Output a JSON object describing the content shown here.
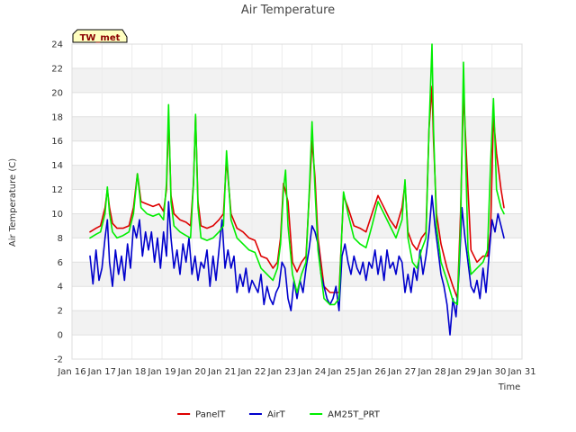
{
  "chart_data": {
    "type": "line",
    "title": "Air Temperature",
    "xlabel": "Time",
    "ylabel": "Air Temperature (C)",
    "badge": "TW_met",
    "xlim": [
      0,
      15
    ],
    "ylim": [
      -2,
      24
    ],
    "x_ticks": [
      0,
      1,
      2,
      3,
      4,
      5,
      6,
      7,
      8,
      9,
      10,
      11,
      12,
      13,
      14,
      15
    ],
    "x_tick_labels": [
      "Jan 16",
      "Jan 17",
      "Jan 18",
      "Jan 19",
      "Jan 20",
      "Jan 21",
      "Jan 22",
      "Jan 23",
      "Jan 24",
      "Jan 25",
      "Jan 26",
      "Jan 27",
      "Jan 28",
      "Jan 29",
      "Jan 30",
      "Jan 31"
    ],
    "y_ticks": [
      -2,
      0,
      2,
      4,
      6,
      8,
      10,
      12,
      14,
      16,
      18,
      20,
      22,
      24
    ],
    "grid": true,
    "legend_position": "bottom",
    "series": [
      {
        "name": "PanelT",
        "color": "#dd0000",
        "x": [
          0.6,
          0.8,
          0.95,
          1.1,
          1.18,
          1.25,
          1.35,
          1.5,
          1.7,
          1.9,
          2.05,
          2.18,
          2.3,
          2.5,
          2.7,
          2.9,
          3.05,
          3.15,
          3.22,
          3.3,
          3.4,
          3.6,
          3.8,
          3.95,
          4.05,
          4.12,
          4.2,
          4.3,
          4.5,
          4.7,
          4.9,
          5.05,
          5.15,
          5.3,
          5.5,
          5.7,
          5.9,
          6.1,
          6.3,
          6.5,
          6.7,
          6.85,
          6.95,
          7.05,
          7.2,
          7.35,
          7.5,
          7.65,
          7.8,
          7.92,
          8.0,
          8.1,
          8.2,
          8.4,
          8.6,
          8.75,
          8.9,
          9.05,
          9.2,
          9.4,
          9.6,
          9.8,
          10.0,
          10.2,
          10.4,
          10.6,
          10.8,
          11.0,
          11.1,
          11.2,
          11.35,
          11.5,
          11.65,
          11.8,
          11.9,
          12.0,
          12.05,
          12.15,
          12.3,
          12.5,
          12.7,
          12.85,
          12.95,
          13.05,
          13.2,
          13.3,
          13.5,
          13.7,
          13.85,
          13.95,
          14.05,
          14.15,
          14.3,
          14.4
        ],
        "y": [
          8.5,
          8.8,
          9.0,
          10.5,
          12.0,
          10.5,
          9.2,
          8.8,
          8.8,
          9.0,
          10.5,
          13.3,
          11.0,
          10.8,
          10.6,
          10.8,
          10.2,
          12.0,
          18.0,
          11.5,
          10.0,
          9.5,
          9.3,
          9.0,
          12.5,
          18.0,
          11.0,
          9.0,
          8.8,
          9.0,
          9.5,
          10.0,
          14.5,
          10.0,
          8.8,
          8.5,
          8.0,
          7.8,
          6.5,
          6.3,
          5.5,
          6.0,
          8.0,
          12.5,
          11.0,
          6.0,
          5.2,
          6.0,
          6.5,
          12.0,
          16.0,
          13.0,
          8.0,
          4.0,
          3.5,
          3.5,
          3.5,
          11.5,
          10.5,
          9.0,
          8.8,
          8.5,
          10.0,
          11.5,
          10.5,
          9.5,
          8.8,
          10.5,
          12.5,
          8.5,
          7.5,
          7.0,
          8.0,
          8.5,
          17.0,
          20.5,
          16.0,
          10.0,
          7.5,
          5.5,
          4.0,
          3.0,
          10.0,
          20.0,
          12.0,
          7.0,
          6.0,
          6.5,
          6.5,
          8.5,
          18.0,
          15.0,
          12.0,
          10.5
        ]
      },
      {
        "name": "AirT",
        "color": "#0000cc",
        "x": [
          0.6,
          0.7,
          0.8,
          0.9,
          1.0,
          1.1,
          1.18,
          1.25,
          1.35,
          1.45,
          1.55,
          1.65,
          1.75,
          1.85,
          1.95,
          2.05,
          2.15,
          2.25,
          2.35,
          2.45,
          2.55,
          2.65,
          2.75,
          2.85,
          2.95,
          3.05,
          3.15,
          3.22,
          3.3,
          3.4,
          3.5,
          3.6,
          3.7,
          3.8,
          3.9,
          4.0,
          4.1,
          4.2,
          4.3,
          4.4,
          4.5,
          4.6,
          4.7,
          4.8,
          4.9,
          5.0,
          5.1,
          5.2,
          5.3,
          5.4,
          5.5,
          5.6,
          5.7,
          5.8,
          5.9,
          6.0,
          6.1,
          6.2,
          6.3,
          6.4,
          6.5,
          6.6,
          6.7,
          6.8,
          6.9,
          7.0,
          7.1,
          7.2,
          7.3,
          7.4,
          7.5,
          7.6,
          7.7,
          7.8,
          7.9,
          8.0,
          8.1,
          8.2,
          8.3,
          8.4,
          8.5,
          8.6,
          8.7,
          8.8,
          8.9,
          9.0,
          9.1,
          9.2,
          9.3,
          9.4,
          9.5,
          9.6,
          9.7,
          9.8,
          9.9,
          10.0,
          10.1,
          10.2,
          10.3,
          10.4,
          10.5,
          10.6,
          10.7,
          10.8,
          10.9,
          11.0,
          11.1,
          11.2,
          11.3,
          11.4,
          11.5,
          11.6,
          11.7,
          11.8,
          11.9,
          12.0,
          12.1,
          12.2,
          12.3,
          12.4,
          12.5,
          12.6,
          12.7,
          12.8,
          12.9,
          13.0,
          13.1,
          13.2,
          13.3,
          13.4,
          13.5,
          13.6,
          13.7,
          13.8,
          13.9,
          14.0,
          14.1,
          14.2,
          14.3,
          14.4
        ],
        "y": [
          6.5,
          4.2,
          7.0,
          4.5,
          5.5,
          8.0,
          9.5,
          6.0,
          4.0,
          7.0,
          5.0,
          6.5,
          4.5,
          7.5,
          5.5,
          9.0,
          8.0,
          9.5,
          6.5,
          8.5,
          7.0,
          8.5,
          6.0,
          8.0,
          5.5,
          8.5,
          6.5,
          11.0,
          8.0,
          5.5,
          7.0,
          5.0,
          7.5,
          6.0,
          8.0,
          5.0,
          6.5,
          4.5,
          6.0,
          5.5,
          7.0,
          4.0,
          6.5,
          4.5,
          7.0,
          9.5,
          5.5,
          7.0,
          5.5,
          6.5,
          3.5,
          5.0,
          4.0,
          5.5,
          3.5,
          4.5,
          4.0,
          3.5,
          5.0,
          2.5,
          4.0,
          3.0,
          2.5,
          3.5,
          4.0,
          6.0,
          5.5,
          3.0,
          2.0,
          4.5,
          3.0,
          4.5,
          3.5,
          5.5,
          7.0,
          9.0,
          8.5,
          7.5,
          5.0,
          4.0,
          3.0,
          2.5,
          3.0,
          4.0,
          2.0,
          6.5,
          7.5,
          6.0,
          5.0,
          6.5,
          5.5,
          5.0,
          6.0,
          4.5,
          6.0,
          5.5,
          7.0,
          5.0,
          6.5,
          4.5,
          7.0,
          5.5,
          6.0,
          5.0,
          6.5,
          6.0,
          3.5,
          5.0,
          3.5,
          5.5,
          4.5,
          7.0,
          5.0,
          6.5,
          8.5,
          11.5,
          9.0,
          7.0,
          5.0,
          4.0,
          2.5,
          0.0,
          3.0,
          1.5,
          5.0,
          10.5,
          8.0,
          6.0,
          4.0,
          3.5,
          4.5,
          3.0,
          5.5,
          3.5,
          6.5,
          9.5,
          8.5,
          10.0,
          9.0,
          8.0
        ]
      },
      {
        "name": "AM25T_PRT",
        "color": "#00ee00",
        "x": [
          0.6,
          0.8,
          0.95,
          1.1,
          1.18,
          1.25,
          1.35,
          1.5,
          1.7,
          1.9,
          2.05,
          2.18,
          2.3,
          2.5,
          2.7,
          2.9,
          3.05,
          3.15,
          3.22,
          3.3,
          3.4,
          3.6,
          3.8,
          3.95,
          4.05,
          4.12,
          4.2,
          4.3,
          4.5,
          4.7,
          4.9,
          5.05,
          5.15,
          5.3,
          5.5,
          5.7,
          5.9,
          6.1,
          6.3,
          6.5,
          6.7,
          6.85,
          6.95,
          7.05,
          7.12,
          7.2,
          7.35,
          7.5,
          7.65,
          7.8,
          7.92,
          8.0,
          8.1,
          8.2,
          8.4,
          8.6,
          8.75,
          8.9,
          9.05,
          9.2,
          9.4,
          9.6,
          9.8,
          10.0,
          10.2,
          10.4,
          10.6,
          10.8,
          11.0,
          11.1,
          11.2,
          11.35,
          11.5,
          11.65,
          11.8,
          11.9,
          12.0,
          12.05,
          12.15,
          12.3,
          12.5,
          12.7,
          12.85,
          12.95,
          13.05,
          13.12,
          13.2,
          13.3,
          13.5,
          13.7,
          13.85,
          13.95,
          14.05,
          14.1,
          14.15,
          14.3,
          14.4
        ],
        "y": [
          8.0,
          8.3,
          8.5,
          10.0,
          12.2,
          10.0,
          8.5,
          8.0,
          8.2,
          8.5,
          10.0,
          13.3,
          10.5,
          10.0,
          9.8,
          10.0,
          9.5,
          12.5,
          19.0,
          11.0,
          9.0,
          8.5,
          8.2,
          8.0,
          12.5,
          18.2,
          10.5,
          8.0,
          7.8,
          8.0,
          8.5,
          9.0,
          15.2,
          9.5,
          8.0,
          7.5,
          7.0,
          6.8,
          5.5,
          5.0,
          4.5,
          5.5,
          7.5,
          12.0,
          13.6,
          9.0,
          5.0,
          3.5,
          5.0,
          6.0,
          12.5,
          17.6,
          12.0,
          7.0,
          3.0,
          2.5,
          2.5,
          3.0,
          11.8,
          10.0,
          8.0,
          7.5,
          7.2,
          9.0,
          11.0,
          10.0,
          9.0,
          8.0,
          9.5,
          12.8,
          8.0,
          6.0,
          5.5,
          7.0,
          8.0,
          17.0,
          24.0,
          17.0,
          9.0,
          6.0,
          4.5,
          2.8,
          2.5,
          9.0,
          22.5,
          15.0,
          7.0,
          5.0,
          5.5,
          6.0,
          7.0,
          14.0,
          19.5,
          16.0,
          12.0,
          10.5,
          10.0
        ]
      }
    ]
  }
}
